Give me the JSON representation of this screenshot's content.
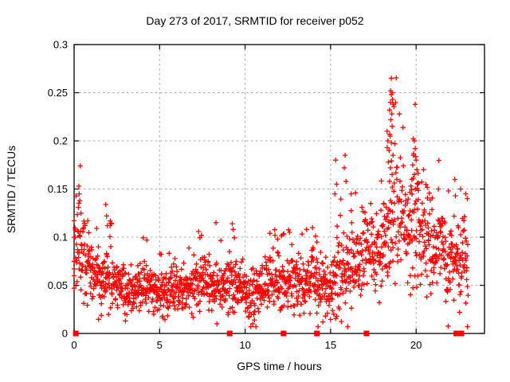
{
  "window": {
    "background": "#ffffff"
  },
  "colors": {
    "points": "#ff0000",
    "grid": "#a9a9a9",
    "frame": "#000000",
    "text": "#000000",
    "background": "#ffffff"
  },
  "chart_data": {
    "type": "scatter",
    "marker": "plus",
    "title": "Day 273 of 2017, SRMTID for receiver p052",
    "xlabel": "GPS time / hours",
    "ylabel": "SRMTID / TECUs",
    "xlim": [
      0,
      24
    ],
    "ylim": [
      0,
      0.3
    ],
    "xticks": [
      0,
      5,
      10,
      15,
      20
    ],
    "xtick_labels": [
      "0",
      "5",
      "10",
      "15",
      "20"
    ],
    "yticks": [
      0,
      0.05,
      0.1,
      0.15,
      0.2,
      0.25,
      0.3
    ],
    "ytick_labels": [
      "0",
      "0.05",
      "0.1",
      "0.15",
      "0.2",
      "0.25",
      "0.3"
    ],
    "grid": true,
    "legend": "none",
    "band_model": {
      "comment": "dense 30s-cadence scatter band; mean/sd envelope read from plot",
      "t_start": 0.05,
      "t_end": 23.05,
      "dt": 0.0135,
      "seed": 42,
      "control_points": [
        [
          0.05,
          0.088,
          0.028
        ],
        [
          0.35,
          0.085,
          0.028
        ],
        [
          0.7,
          0.072,
          0.02
        ],
        [
          1.1,
          0.06,
          0.017
        ],
        [
          1.6,
          0.054,
          0.016
        ],
        [
          1.95,
          0.058,
          0.02
        ],
        [
          2.4,
          0.05,
          0.015
        ],
        [
          3.0,
          0.045,
          0.013
        ],
        [
          3.6,
          0.047,
          0.014
        ],
        [
          4.2,
          0.05,
          0.015
        ],
        [
          4.8,
          0.045,
          0.013
        ],
        [
          5.3,
          0.042,
          0.012
        ],
        [
          6.0,
          0.046,
          0.014
        ],
        [
          6.8,
          0.049,
          0.015
        ],
        [
          7.5,
          0.054,
          0.016
        ],
        [
          8.1,
          0.05,
          0.016
        ],
        [
          8.7,
          0.047,
          0.014
        ],
        [
          9.2,
          0.054,
          0.018
        ],
        [
          9.7,
          0.046,
          0.014
        ],
        [
          10.3,
          0.042,
          0.014
        ],
        [
          11.0,
          0.048,
          0.015
        ],
        [
          11.6,
          0.056,
          0.018
        ],
        [
          12.1,
          0.05,
          0.015
        ],
        [
          12.7,
          0.052,
          0.017
        ],
        [
          13.3,
          0.048,
          0.016
        ],
        [
          13.9,
          0.055,
          0.018
        ],
        [
          14.4,
          0.052,
          0.019
        ],
        [
          14.9,
          0.047,
          0.018
        ],
        [
          15.4,
          0.06,
          0.024
        ],
        [
          16.0,
          0.072,
          0.027
        ],
        [
          16.6,
          0.078,
          0.024
        ],
        [
          17.3,
          0.085,
          0.027
        ],
        [
          18.0,
          0.092,
          0.028
        ],
        [
          18.5,
          0.115,
          0.04
        ],
        [
          18.9,
          0.125,
          0.042
        ],
        [
          19.3,
          0.108,
          0.034
        ],
        [
          19.9,
          0.118,
          0.036
        ],
        [
          20.4,
          0.106,
          0.032
        ],
        [
          21.0,
          0.09,
          0.028
        ],
        [
          21.7,
          0.082,
          0.027
        ],
        [
          22.3,
          0.077,
          0.027
        ],
        [
          22.75,
          0.082,
          0.029
        ],
        [
          23.05,
          0.082,
          0.03
        ]
      ]
    },
    "outliers": [
      [
        0.0,
        0.117
      ],
      [
        0.0,
        0.1
      ],
      [
        0.0,
        0.075
      ],
      [
        0.0,
        0.067
      ],
      [
        0.0,
        0.06
      ],
      [
        0.0,
        0.047
      ],
      [
        0.28,
        0.153
      ],
      [
        0.3,
        0.145
      ],
      [
        0.33,
        0.138
      ],
      [
        0.25,
        0.131
      ],
      [
        0.4,
        0.125
      ],
      [
        1.85,
        0.134
      ],
      [
        1.9,
        0.122
      ],
      [
        1.95,
        0.112
      ],
      [
        2.1,
        0.112
      ],
      [
        3.0,
        0.013
      ],
      [
        4.25,
        0.097
      ],
      [
        5.2,
        0.016
      ],
      [
        7.45,
        0.102
      ],
      [
        8.3,
        0.115
      ],
      [
        8.35,
        0.01
      ],
      [
        9.25,
        0.114
      ],
      [
        9.3,
        0.108
      ],
      [
        10.45,
        0.01
      ],
      [
        10.55,
        0.014
      ],
      [
        11.45,
        0.104
      ],
      [
        11.75,
        0.102
      ],
      [
        11.9,
        0.098
      ],
      [
        12.6,
        0.105
      ],
      [
        13.6,
        0.108
      ],
      [
        14.2,
        0.095
      ],
      [
        14.55,
        0.012
      ],
      [
        14.7,
        0.018
      ],
      [
        15.3,
        0.18
      ],
      [
        15.35,
        0.155
      ],
      [
        15.25,
        0.145
      ],
      [
        15.85,
        0.185
      ],
      [
        15.8,
        0.172
      ],
      [
        15.9,
        0.158
      ],
      [
        16.2,
        0.145
      ],
      [
        18.3,
        0.21
      ],
      [
        18.35,
        0.2
      ],
      [
        18.55,
        0.265
      ],
      [
        18.5,
        0.252
      ],
      [
        18.55,
        0.248
      ],
      [
        18.6,
        0.25
      ],
      [
        18.62,
        0.243
      ],
      [
        18.65,
        0.238
      ],
      [
        18.5,
        0.24
      ],
      [
        18.45,
        0.232
      ],
      [
        18.58,
        0.228
      ],
      [
        18.52,
        0.222
      ],
      [
        18.6,
        0.215
      ],
      [
        18.48,
        0.205
      ],
      [
        18.55,
        0.198
      ],
      [
        18.42,
        0.19
      ],
      [
        18.65,
        0.185
      ],
      [
        18.38,
        0.178
      ],
      [
        18.5,
        0.172
      ],
      [
        18.6,
        0.165
      ],
      [
        18.45,
        0.158
      ],
      [
        19.9,
        0.2
      ],
      [
        19.95,
        0.192
      ],
      [
        19.85,
        0.185
      ],
      [
        20.0,
        0.18
      ],
      [
        19.8,
        0.175
      ],
      [
        20.05,
        0.17
      ],
      [
        19.9,
        0.165
      ],
      [
        19.75,
        0.16
      ],
      [
        20.1,
        0.155
      ],
      [
        19.95,
        0.15
      ],
      [
        21.3,
        0.15
      ],
      [
        21.9,
        0.148
      ],
      [
        22.3,
        0.143
      ],
      [
        22.6,
        0.15
      ],
      [
        22.9,
        0.145
      ],
      [
        23.0,
        0.14
      ]
    ],
    "zero_markers": [
      0.1,
      9.1,
      12.25,
      14.2,
      17.1,
      22.35,
      22.5,
      22.65
    ]
  }
}
